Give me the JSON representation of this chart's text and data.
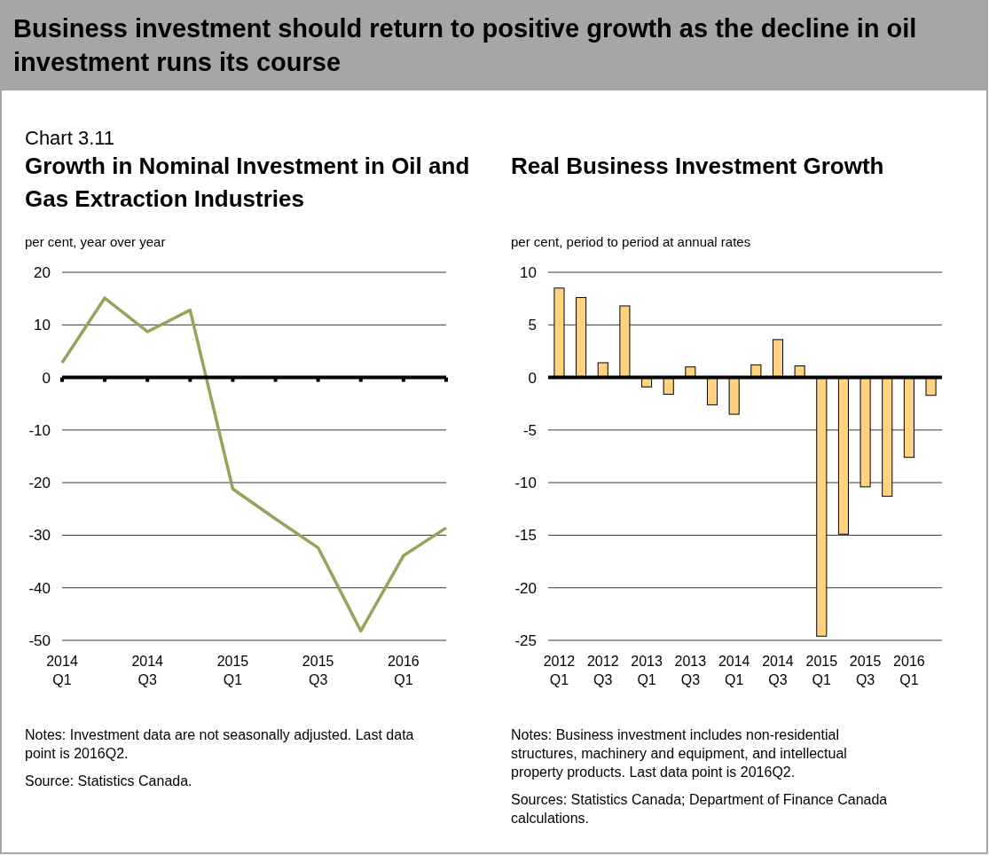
{
  "chart_data": [
    {
      "type": "line",
      "title": "Growth in Nominal Investment in Oil and Gas Extraction Industries",
      "ylabel": "per cent, year over year",
      "categories": [
        "2014 Q1",
        null,
        "2014 Q3",
        null,
        "2015 Q1",
        null,
        "2015 Q3",
        null,
        "2016 Q1",
        null
      ],
      "series": [
        {
          "color": "#9aa15a",
          "values": [
            2.8,
            15.1,
            8.7,
            12.8,
            -21.2,
            -26.9,
            -32.4,
            -48.2,
            -33.9,
            -28.6
          ]
        }
      ],
      "ylim": [
        -50,
        20
      ],
      "yticks": [
        -50,
        -40,
        -30,
        -20,
        -10,
        0,
        10,
        20
      ],
      "grid": "y",
      "marker": "none",
      "line_style": "solid",
      "annotations": [
        "Business investment should return to positive growth as the decline in oil investment runs its course",
        "Chart 3.11",
        "Notes: Investment data are not seasonally adjusted. Last data point is 2016Q2.",
        "Source: Statistics Canada."
      ]
    },
    {
      "type": "bar",
      "title": "Real Business Investment Growth",
      "ylabel": "per cent, period to period at annual rates",
      "categories": [
        "2012 Q1",
        null,
        "2012 Q3",
        null,
        "2013 Q1",
        null,
        "2013 Q3",
        null,
        "2014 Q1",
        null,
        "2014 Q3",
        null,
        "2015 Q1",
        null,
        "2015 Q3",
        null,
        "2016 Q1",
        null
      ],
      "series": [
        {
          "color": "#ffd27f",
          "values": [
            8.5,
            7.6,
            1.4,
            6.8,
            -0.9,
            -1.6,
            1.0,
            -2.6,
            -3.5,
            1.2,
            3.6,
            1.1,
            -24.6,
            -14.9,
            -10.4,
            -11.3,
            -7.6,
            -1.7
          ]
        }
      ],
      "ylim": [
        -25,
        10
      ],
      "yticks": [
        -25,
        -20,
        -15,
        -10,
        -5,
        0,
        5,
        10
      ],
      "grid": "y",
      "annotations": [
        "Notes: Business investment includes non-residential structures, machinery and equipment, and intellectual property products. Last data point is 2016Q2.",
        "Sources: Statistics Canada; Department of Finance Canada calculations."
      ]
    }
  ]
}
